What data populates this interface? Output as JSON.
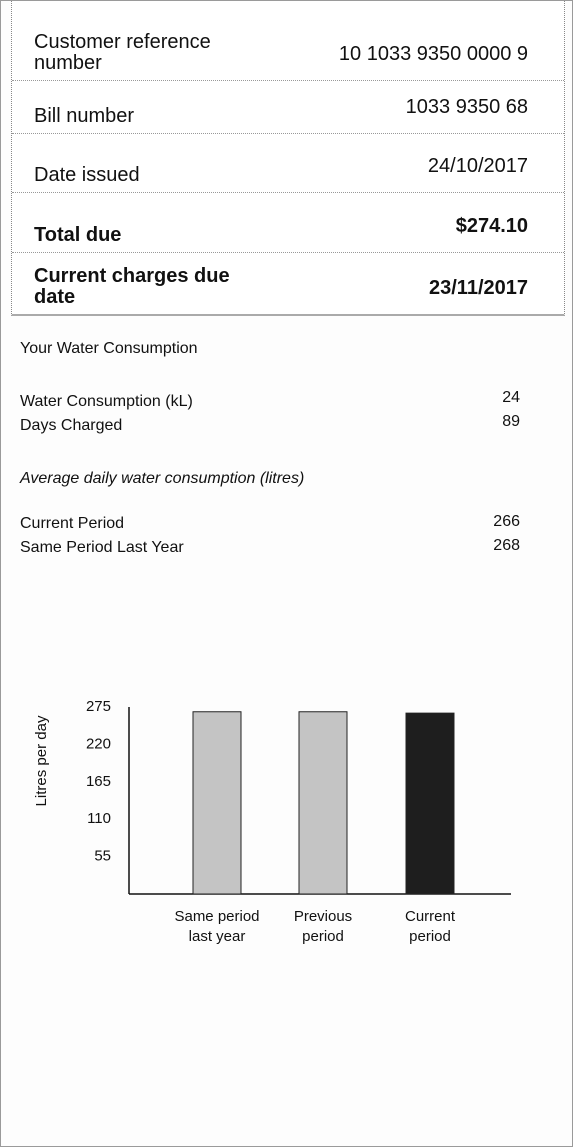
{
  "summary": [
    {
      "label": "Customer reference number",
      "value": "10 1033 9350 0000 9"
    },
    {
      "label": "Bill number",
      "value": "1033 9350 68"
    },
    {
      "label": "Date issued",
      "value": "24/10/2017"
    },
    {
      "label": "Total due",
      "value": "$274.10"
    },
    {
      "label": "Current charges due date",
      "value": "23/11/2017"
    }
  ],
  "consumption": {
    "title": "Your Water Consumption",
    "rows": [
      {
        "label": "Water Consumption (kL)",
        "value": "24"
      },
      {
        "label": "Days Charged",
        "value": "89"
      }
    ]
  },
  "average": {
    "title": "Average daily water consumption (litres)",
    "rows": [
      {
        "label": "Current Period",
        "value": "266"
      },
      {
        "label": "Same Period Last Year",
        "value": "268"
      }
    ]
  },
  "chart_data": {
    "type": "bar",
    "ylabel": "Litres per day",
    "categories": [
      "Same period last year",
      "Previous period",
      "Current period"
    ],
    "values": [
      268,
      268,
      266
    ],
    "colors": [
      "#c4c4c4",
      "#c4c4c4",
      "#1e1e1e"
    ],
    "ylim": [
      0,
      275
    ],
    "yticks": [
      55,
      110,
      165,
      220,
      275
    ],
    "grid": false
  }
}
